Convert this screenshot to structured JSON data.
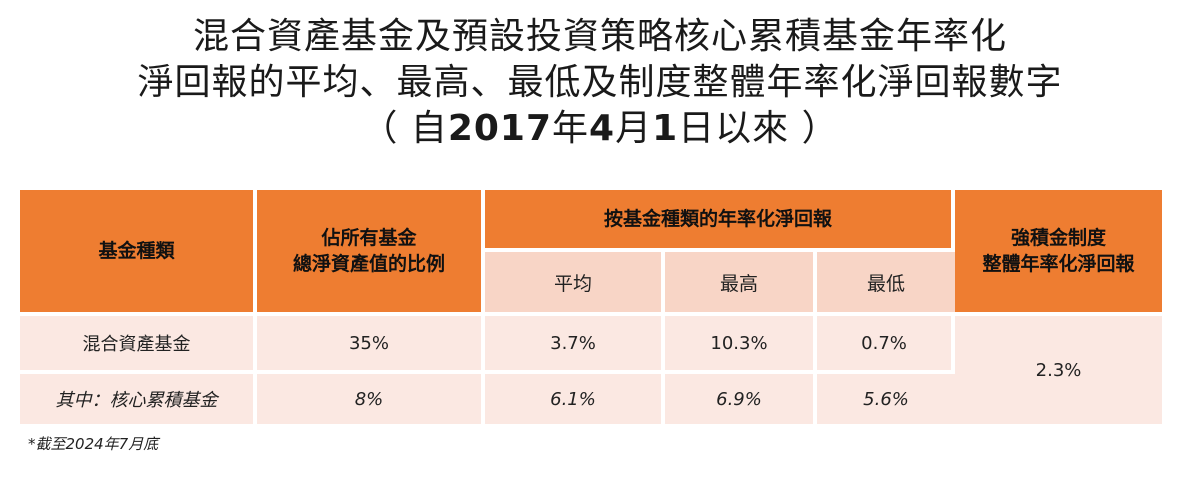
{
  "title": {
    "line1": "混合資產基金及預設投資策略核心累積基金年率化",
    "line2": "淨回報的平均、最高、最低及制度整體年率化淨回報數字",
    "line3_open": "（ 自",
    "line3_year": "2017",
    "line3_yc": "年",
    "line3_month": "4",
    "line3_mc": "月",
    "line3_day": "1",
    "line3_close": "日以來 ）"
  },
  "table": {
    "headers": {
      "fund_type": "基金種類",
      "proportion_line1": "佔所有基金",
      "proportion_line2": "總淨資產值的比例",
      "annualised_return": "按基金種類的年率化淨回報",
      "average": "平均",
      "highest": "最高",
      "lowest": "最低",
      "system_line1": "強積金制度",
      "system_line2": "整體年率化淨回報"
    },
    "rows": [
      {
        "fund": "混合資產基金",
        "proportion": "35%",
        "average": "3.7%",
        "highest": "10.3%",
        "lowest": "0.7%"
      },
      {
        "fund": "其中：核心累積基金",
        "proportion": "8%",
        "average": "6.1%",
        "highest": "6.9%",
        "lowest": "5.6%"
      }
    ],
    "system_return": "2.3%"
  },
  "footnote": "*截至2024年7月底",
  "colors": {
    "header_orange": "#ee7d31",
    "subheader_pink": "#f8d5c6",
    "cell_pink": "#fbe8e2"
  }
}
